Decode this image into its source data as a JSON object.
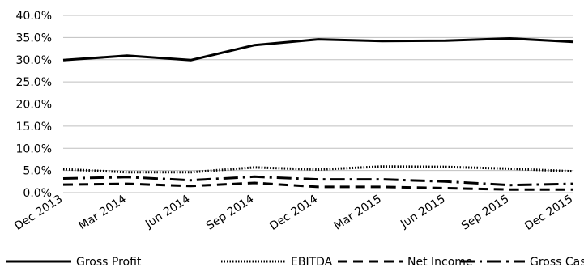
{
  "chart_data": {
    "type": "line",
    "categories": [
      "Dec 2013",
      "Mar 2014",
      "Jun 2014",
      "Sep 2014",
      "Dec 2014",
      "Mar 2015",
      "Jun 2015",
      "Sep 2015",
      "Dec 2015"
    ],
    "y_ticks": [
      "0.0%",
      "5.0%",
      "10.0%",
      "15.0%",
      "20.0%",
      "25.0%",
      "30.0%",
      "35.0%",
      "40.0%"
    ],
    "ylim": [
      0,
      40
    ],
    "grid": true,
    "legend_position": "bottom",
    "series": [
      {
        "name": "Gross Profit",
        "style": "solid",
        "values": [
          29.9,
          30.9,
          29.9,
          33.3,
          34.6,
          34.2,
          34.3,
          34.8,
          34.0
        ]
      },
      {
        "name": "EBITDA",
        "style": "dotted",
        "values": [
          5.3,
          4.6,
          4.6,
          5.7,
          5.2,
          5.9,
          5.8,
          5.4,
          4.8
        ]
      },
      {
        "name": "Net Income",
        "style": "dashed",
        "values": [
          1.8,
          2.0,
          1.5,
          2.2,
          1.3,
          1.3,
          1.0,
          0.7,
          0.7
        ]
      },
      {
        "name": "Gross Cash Flow",
        "style": "dashdot",
        "values": [
          3.2,
          3.5,
          2.8,
          3.6,
          3.0,
          3.0,
          2.5,
          1.7,
          2.0
        ]
      }
    ]
  }
}
